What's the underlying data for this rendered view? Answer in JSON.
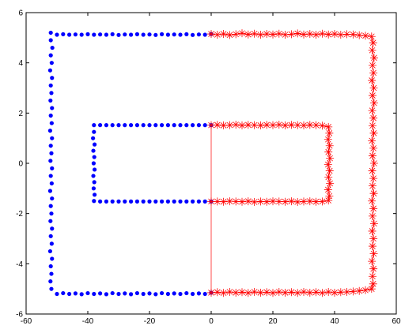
{
  "chart_data": {
    "type": "scatter",
    "title": "",
    "xlabel": "",
    "ylabel": "",
    "xlim": [
      -60,
      60
    ],
    "ylim": [
      -6,
      6
    ],
    "grid": false,
    "legend": "none",
    "x_ticks": [
      {
        "value": -60,
        "label": "-60"
      },
      {
        "value": -40,
        "label": "-40"
      },
      {
        "value": -20,
        "label": "-20"
      },
      {
        "value": 0,
        "label": "0"
      },
      {
        "value": 20,
        "label": "20"
      },
      {
        "value": 40,
        "label": "40"
      },
      {
        "value": 60,
        "label": "60"
      }
    ],
    "y_ticks": [
      {
        "value": -6,
        "label": "-6"
      },
      {
        "value": -4,
        "label": "-4"
      },
      {
        "value": -2,
        "label": "-2"
      },
      {
        "value": 0,
        "label": "0"
      },
      {
        "value": 2,
        "label": "2"
      },
      {
        "value": 4,
        "label": "4"
      },
      {
        "value": 6,
        "label": "6"
      }
    ],
    "series": [
      {
        "marker": "dot",
        "color": "#0000ff",
        "points": [
          [
            0,
            5.15
          ],
          [
            -2,
            5.12
          ],
          [
            -4,
            5.13
          ],
          [
            -6,
            5.11
          ],
          [
            -8,
            5.14
          ],
          [
            -10,
            5.12
          ],
          [
            -12,
            5.13
          ],
          [
            -14,
            5.12
          ],
          [
            -16,
            5.14
          ],
          [
            -18,
            5.11
          ],
          [
            -20,
            5.13
          ],
          [
            -22,
            5.12
          ],
          [
            -24,
            5.14
          ],
          [
            -26,
            5.12
          ],
          [
            -28,
            5.13
          ],
          [
            -30,
            5.11
          ],
          [
            -32,
            5.14
          ],
          [
            -34,
            5.12
          ],
          [
            -36,
            5.13
          ],
          [
            -38,
            5.12
          ],
          [
            -40,
            5.14
          ],
          [
            -42,
            5.12
          ],
          [
            -44,
            5.13
          ],
          [
            -46,
            5.12
          ],
          [
            -48,
            5.14
          ],
          [
            -50,
            5.12
          ],
          [
            -52,
            5.2
          ],
          [
            -52,
            4.9
          ],
          [
            -51.5,
            4.6
          ],
          [
            -52,
            4.3
          ],
          [
            -51.7,
            4.0
          ],
          [
            -52.2,
            3.7
          ],
          [
            -51.6,
            3.4
          ],
          [
            -52,
            3.1
          ],
          [
            -51.8,
            2.8
          ],
          [
            -52.1,
            2.5
          ],
          [
            -51.6,
            2.2
          ],
          [
            -52,
            1.9
          ],
          [
            -51.7,
            1.6
          ],
          [
            -52.2,
            1.3
          ],
          [
            -51.6,
            1.0
          ],
          [
            -52,
            0.7
          ],
          [
            -51.8,
            0.4
          ],
          [
            -52.1,
            0.1
          ],
          [
            -51.6,
            -0.2
          ],
          [
            -52,
            -0.5
          ],
          [
            -51.7,
            -0.8
          ],
          [
            -52.2,
            -1.1
          ],
          [
            -51.6,
            -1.4
          ],
          [
            -52,
            -1.7
          ],
          [
            -51.8,
            -2.0
          ],
          [
            -52.1,
            -2.3
          ],
          [
            -51.6,
            -2.6
          ],
          [
            -52,
            -2.9
          ],
          [
            -51.7,
            -3.2
          ],
          [
            -52.2,
            -3.5
          ],
          [
            -51.6,
            -3.8
          ],
          [
            -52,
            -4.1
          ],
          [
            -51.8,
            -4.4
          ],
          [
            -52.1,
            -4.7
          ],
          [
            -51.8,
            -5.0
          ],
          [
            -50,
            -5.2
          ],
          [
            -48,
            -5.17
          ],
          [
            -46,
            -5.2
          ],
          [
            -44,
            -5.18
          ],
          [
            -42,
            -5.21
          ],
          [
            -40,
            -5.17
          ],
          [
            -38,
            -5.2
          ],
          [
            -36,
            -5.18
          ],
          [
            -34,
            -5.21
          ],
          [
            -32,
            -5.17
          ],
          [
            -30,
            -5.2
          ],
          [
            -28,
            -5.18
          ],
          [
            -26,
            -5.21
          ],
          [
            -24,
            -5.17
          ],
          [
            -22,
            -5.2
          ],
          [
            -20,
            -5.18
          ],
          [
            -18,
            -5.21
          ],
          [
            -16,
            -5.17
          ],
          [
            -14,
            -5.2
          ],
          [
            -12,
            -5.18
          ],
          [
            -10,
            -5.2
          ],
          [
            -8,
            -5.17
          ],
          [
            -6,
            -5.2
          ],
          [
            -4,
            -5.18
          ],
          [
            -2,
            -5.2
          ],
          [
            0,
            -5.15
          ],
          [
            0,
            1.52
          ],
          [
            -2,
            1.52
          ],
          [
            -4,
            1.52
          ],
          [
            -6,
            1.52
          ],
          [
            -8,
            1.52
          ],
          [
            -10,
            1.52
          ],
          [
            -12,
            1.52
          ],
          [
            -14,
            1.52
          ],
          [
            -16,
            1.52
          ],
          [
            -18,
            1.52
          ],
          [
            -20,
            1.52
          ],
          [
            -22,
            1.52
          ],
          [
            -24,
            1.52
          ],
          [
            -26,
            1.52
          ],
          [
            -28,
            1.52
          ],
          [
            -30,
            1.52
          ],
          [
            -32,
            1.52
          ],
          [
            -34,
            1.52
          ],
          [
            -36,
            1.52
          ],
          [
            -38,
            1.52
          ],
          [
            -38,
            1.25
          ],
          [
            -38.3,
            1.0
          ],
          [
            -37.8,
            0.75
          ],
          [
            -38.2,
            0.5
          ],
          [
            -37.9,
            0.25
          ],
          [
            -38.1,
            0.0
          ],
          [
            -37.8,
            -0.25
          ],
          [
            -38.2,
            -0.5
          ],
          [
            -37.9,
            -0.75
          ],
          [
            -38.1,
            -1.0
          ],
          [
            -37.8,
            -1.25
          ],
          [
            -38,
            -1.5
          ],
          [
            -36,
            -1.52
          ],
          [
            -34,
            -1.52
          ],
          [
            -32,
            -1.52
          ],
          [
            -30,
            -1.52
          ],
          [
            -28,
            -1.52
          ],
          [
            -26,
            -1.52
          ],
          [
            -24,
            -1.52
          ],
          [
            -22,
            -1.52
          ],
          [
            -20,
            -1.52
          ],
          [
            -18,
            -1.52
          ],
          [
            -16,
            -1.52
          ],
          [
            -14,
            -1.52
          ],
          [
            -12,
            -1.52
          ],
          [
            -10,
            -1.52
          ],
          [
            -8,
            -1.52
          ],
          [
            -6,
            -1.52
          ],
          [
            -4,
            -1.52
          ],
          [
            -2,
            -1.52
          ],
          [
            0,
            -1.52
          ]
        ]
      },
      {
        "marker": "asterisk",
        "color": "#ff0000",
        "points": [
          [
            0,
            5.15
          ],
          [
            2,
            5.12
          ],
          [
            4,
            5.15
          ],
          [
            6,
            5.11
          ],
          [
            8,
            5.14
          ],
          [
            10,
            5.18
          ],
          [
            12,
            5.13
          ],
          [
            14,
            5.16
          ],
          [
            16,
            5.12
          ],
          [
            18,
            5.15
          ],
          [
            20,
            5.13
          ],
          [
            22,
            5.16
          ],
          [
            24,
            5.12
          ],
          [
            26,
            5.14
          ],
          [
            28,
            5.17
          ],
          [
            30,
            5.13
          ],
          [
            32,
            5.15
          ],
          [
            34,
            5.12
          ],
          [
            36,
            5.16
          ],
          [
            38,
            5.13
          ],
          [
            40,
            5.15
          ],
          [
            42,
            5.12
          ],
          [
            44,
            5.14
          ],
          [
            46,
            5.13
          ],
          [
            48,
            5.1
          ],
          [
            50,
            5.08
          ],
          [
            52,
            5.05
          ],
          [
            52.5,
            4.8
          ],
          [
            52.2,
            4.5
          ],
          [
            52.8,
            4.2
          ],
          [
            52.3,
            3.9
          ],
          [
            52.6,
            3.6
          ],
          [
            52.1,
            3.3
          ],
          [
            52.7,
            3.0
          ],
          [
            52.3,
            2.7
          ],
          [
            52.8,
            2.4
          ],
          [
            52.2,
            2.1
          ],
          [
            52.6,
            1.8
          ],
          [
            52.3,
            1.5
          ],
          [
            52.7,
            1.2
          ],
          [
            52.1,
            0.9
          ],
          [
            52.6,
            0.6
          ],
          [
            52.3,
            0.3
          ],
          [
            52.8,
            0.0
          ],
          [
            52.2,
            -0.3
          ],
          [
            52.6,
            -0.6
          ],
          [
            52.3,
            -0.9
          ],
          [
            52.7,
            -1.2
          ],
          [
            52.1,
            -1.5
          ],
          [
            52.6,
            -1.8
          ],
          [
            52.3,
            -2.1
          ],
          [
            52.8,
            -2.4
          ],
          [
            52.2,
            -2.7
          ],
          [
            52.6,
            -3.0
          ],
          [
            52.3,
            -3.3
          ],
          [
            52.7,
            -3.6
          ],
          [
            52.1,
            -3.9
          ],
          [
            52.6,
            -4.2
          ],
          [
            52.3,
            -4.5
          ],
          [
            52.5,
            -4.8
          ],
          [
            52,
            -5.0
          ],
          [
            50,
            -5.05
          ],
          [
            48,
            -5.08
          ],
          [
            46,
            -5.1
          ],
          [
            44,
            -5.12
          ],
          [
            42,
            -5.13
          ],
          [
            40,
            -5.15
          ],
          [
            38,
            -5.12
          ],
          [
            36,
            -5.16
          ],
          [
            34,
            -5.13
          ],
          [
            32,
            -5.15
          ],
          [
            30,
            -5.12
          ],
          [
            28,
            -5.16
          ],
          [
            26,
            -5.13
          ],
          [
            24,
            -5.15
          ],
          [
            22,
            -5.12
          ],
          [
            20,
            -5.16
          ],
          [
            18,
            -5.13
          ],
          [
            16,
            -5.15
          ],
          [
            14,
            -5.12
          ],
          [
            12,
            -5.16
          ],
          [
            10,
            -5.13
          ],
          [
            8,
            -5.15
          ],
          [
            6,
            -5.12
          ],
          [
            4,
            -5.16
          ],
          [
            2,
            -5.13
          ],
          [
            0,
            -5.15
          ],
          [
            0,
            1.52
          ],
          [
            2,
            1.53
          ],
          [
            4,
            1.51
          ],
          [
            6,
            1.52
          ],
          [
            8,
            1.54
          ],
          [
            10,
            1.51
          ],
          [
            12,
            1.53
          ],
          [
            14,
            1.52
          ],
          [
            16,
            1.51
          ],
          [
            18,
            1.53
          ],
          [
            20,
            1.52
          ],
          [
            22,
            1.54
          ],
          [
            24,
            1.51
          ],
          [
            26,
            1.53
          ],
          [
            28,
            1.52
          ],
          [
            30,
            1.51
          ],
          [
            32,
            1.53
          ],
          [
            34,
            1.52
          ],
          [
            36,
            1.5
          ],
          [
            38,
            1.45
          ],
          [
            38.3,
            1.2
          ],
          [
            37.9,
            0.95
          ],
          [
            38.4,
            0.7
          ],
          [
            38,
            0.45
          ],
          [
            38.5,
            0.2
          ],
          [
            37.9,
            -0.05
          ],
          [
            38.4,
            -0.3
          ],
          [
            38,
            -0.55
          ],
          [
            38.5,
            -0.8
          ],
          [
            37.9,
            -1.05
          ],
          [
            38.3,
            -1.3
          ],
          [
            38,
            -1.48
          ],
          [
            36,
            -1.52
          ],
          [
            34,
            -1.53
          ],
          [
            32,
            -1.51
          ],
          [
            30,
            -1.52
          ],
          [
            28,
            -1.54
          ],
          [
            26,
            -1.51
          ],
          [
            24,
            -1.53
          ],
          [
            22,
            -1.52
          ],
          [
            20,
            -1.51
          ],
          [
            18,
            -1.53
          ],
          [
            16,
            -1.52
          ],
          [
            14,
            -1.54
          ],
          [
            12,
            -1.51
          ],
          [
            10,
            -1.53
          ],
          [
            8,
            -1.52
          ],
          [
            6,
            -1.51
          ],
          [
            4,
            -1.53
          ],
          [
            2,
            -1.52
          ],
          [
            0,
            -1.52
          ]
        ]
      }
    ]
  }
}
